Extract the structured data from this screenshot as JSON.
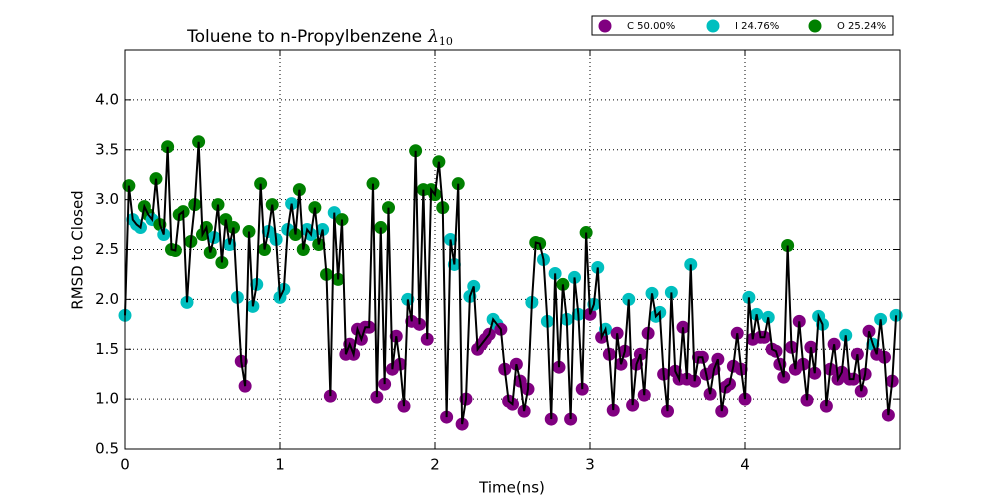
{
  "chart_data": {
    "type": "line",
    "title": "Toluene to n-Propylbenzene",
    "title_symbol": "λ",
    "title_subscript": "10",
    "x_label": "Time(ns)",
    "y_label": "RMSD to Closed",
    "xlim": [
      0,
      5
    ],
    "ylim": [
      0.5,
      4.5
    ],
    "xticks": [
      0,
      1,
      2,
      3,
      4
    ],
    "yticks": [
      0.5,
      {
        "value": 1,
        "label": "1.0"
      },
      1.5,
      {
        "value": 2,
        "label": "2.0"
      },
      2.5,
      {
        "value": 3,
        "label": "3.0"
      },
      3.5,
      {
        "value": 4,
        "label": "4.0"
      }
    ],
    "grid": true,
    "legend": "top-right",
    "line_color": "#000000",
    "series": [
      {
        "name": "C 50.00%",
        "color": "#800080"
      },
      {
        "name": "I 24.76%",
        "color": "#00bfbf"
      },
      {
        "name": "O 25.24%",
        "color": "#008000"
      }
    ],
    "x": [
      0,
      0.025,
      0.05,
      0.075,
      0.1,
      0.125,
      0.15,
      0.175,
      0.2,
      0.225,
      0.25,
      0.275,
      0.3,
      0.325,
      0.35,
      0.375,
      0.4,
      0.425,
      0.45,
      0.475,
      0.5,
      0.525,
      0.55,
      0.575,
      0.6,
      0.625,
      0.65,
      0.675,
      0.7,
      0.725,
      0.75,
      0.775,
      0.8,
      0.825,
      0.85,
      0.875,
      0.9,
      0.925,
      0.95,
      0.975,
      1,
      1.025,
      1.05,
      1.075,
      1.1,
      1.125,
      1.15,
      1.175,
      1.2,
      1.225,
      1.25,
      1.275,
      1.3,
      1.325,
      1.35,
      1.375,
      1.4,
      1.425,
      1.45,
      1.475,
      1.5,
      1.525,
      1.55,
      1.575,
      1.6,
      1.625,
      1.65,
      1.675,
      1.7,
      1.725,
      1.75,
      1.775,
      1.8,
      1.825,
      1.85,
      1.875,
      1.9,
      1.925,
      1.95,
      1.975,
      2,
      2.025,
      2.05,
      2.075,
      2.1,
      2.125,
      2.15,
      2.175,
      2.2,
      2.225,
      2.25,
      2.275,
      2.3,
      2.325,
      2.35,
      2.375,
      2.4,
      2.425,
      2.45,
      2.475,
      2.5,
      2.525,
      2.55,
      2.575,
      2.6,
      2.625,
      2.65,
      2.675,
      2.7,
      2.725,
      2.75,
      2.775,
      2.8,
      2.825,
      2.85,
      2.875,
      2.9,
      2.925,
      2.95,
      2.975,
      3,
      3.025,
      3.05,
      3.075,
      3.1,
      3.125,
      3.15,
      3.175,
      3.2,
      3.225,
      3.25,
      3.275,
      3.3,
      3.325,
      3.35,
      3.375,
      3.4,
      3.425,
      3.45,
      3.475,
      3.5,
      3.525,
      3.55,
      3.575,
      3.6,
      3.625,
      3.65,
      3.675,
      3.7,
      3.725,
      3.75,
      3.775,
      3.8,
      3.825,
      3.85,
      3.875,
      3.9,
      3.925,
      3.95,
      3.975,
      4,
      4.025,
      4.05,
      4.075,
      4.1,
      4.125,
      4.15,
      4.175,
      4.2,
      4.225,
      4.25,
      4.275,
      4.3,
      4.325,
      4.35,
      4.375,
      4.4,
      4.425,
      4.45,
      4.475,
      4.5,
      4.525,
      4.55,
      4.575,
      4.6,
      4.625,
      4.65,
      4.675,
      4.7,
      4.725,
      4.75,
      4.775,
      4.8,
      4.825,
      4.85,
      4.875,
      4.9,
      4.925,
      4.95,
      4.975
    ],
    "values": [
      1.84,
      3.14,
      2.8,
      2.75,
      2.72,
      2.93,
      2.85,
      2.8,
      3.21,
      2.75,
      2.65,
      3.53,
      2.5,
      2.49,
      2.85,
      2.88,
      1.97,
      2.58,
      2.95,
      3.58,
      2.65,
      2.72,
      2.47,
      2.62,
      2.95,
      2.37,
      2.8,
      2.55,
      2.72,
      2.02,
      1.38,
      1.13,
      2.68,
      1.93,
      2.15,
      3.16,
      2.5,
      2.68,
      2.95,
      2.6,
      2.02,
      2.1,
      2.7,
      2.96,
      2.65,
      3.1,
      2.5,
      2.7,
      2.65,
      2.92,
      2.55,
      2.7,
      2.25,
      1.03,
      2.87,
      2.2,
      2.8,
      1.45,
      1.55,
      1.45,
      1.7,
      1.6,
      1.72,
      1.72,
      3.16,
      1.02,
      2.72,
      1.15,
      2.92,
      1.3,
      1.63,
      1.35,
      0.93,
      2.0,
      1.78,
      3.49,
      1.75,
      3.1,
      1.6,
      3.1,
      3.05,
      3.38,
      2.92,
      0.82,
      2.6,
      2.35,
      3.16,
      0.75,
      1.0,
      2.03,
      2.13,
      1.5,
      1.55,
      1.6,
      1.65,
      1.8,
      1.75,
      1.7,
      1.3,
      0.98,
      0.95,
      1.35,
      1.18,
      0.88,
      1.1,
      1.97,
      2.57,
      2.56,
      2.4,
      1.78,
      0.8,
      2.26,
      1.32,
      2.15,
      1.8,
      0.8,
      2.22,
      1.85,
      1.1,
      2.67,
      1.85,
      1.95,
      2.32,
      1.62,
      1.7,
      1.45,
      0.89,
      1.66,
      1.35,
      1.48,
      2.0,
      0.94,
      1.35,
      1.45,
      1.04,
      1.66,
      2.06,
      1.83,
      1.87,
      1.25,
      0.88,
      2.07,
      1.28,
      1.2,
      1.72,
      1.2,
      2.35,
      1.18,
      1.42,
      1.42,
      1.25,
      1.05,
      1.3,
      1.4,
      0.88,
      1.12,
      1.15,
      1.33,
      1.66,
      1.3,
      1.0,
      2.02,
      1.6,
      1.85,
      1.62,
      1.62,
      1.82,
      1.5,
      1.48,
      1.35,
      1.22,
      2.54,
      1.52,
      1.3,
      1.78,
      1.35,
      0.99,
      1.52,
      1.26,
      1.83,
      1.75,
      0.93,
      1.3,
      1.55,
      1.2,
      1.27,
      1.64,
      1.2,
      1.2,
      1.45,
      1.08,
      1.25,
      1.68,
      1.55,
      1.45,
      1.8,
      1.42,
      0.84,
      1.18,
      1.84
    ],
    "states": [
      1,
      2,
      1,
      1,
      1,
      2,
      2,
      1,
      2,
      2,
      1,
      2,
      2,
      2,
      2,
      2,
      1,
      2,
      2,
      2,
      2,
      2,
      2,
      1,
      2,
      2,
      2,
      1,
      2,
      1,
      0,
      0,
      2,
      1,
      1,
      2,
      2,
      1,
      2,
      1,
      1,
      1,
      1,
      1,
      2,
      2,
      2,
      1,
      1,
      2,
      2,
      1,
      2,
      0,
      1,
      2,
      2,
      0,
      0,
      0,
      0,
      0,
      0,
      0,
      2,
      0,
      2,
      0,
      2,
      0,
      0,
      0,
      0,
      1,
      0,
      2,
      0,
      2,
      0,
      2,
      2,
      2,
      2,
      0,
      1,
      1,
      2,
      0,
      0,
      1,
      1,
      0,
      0,
      0,
      0,
      1,
      1,
      0,
      0,
      0,
      0,
      0,
      0,
      0,
      0,
      1,
      2,
      2,
      1,
      1,
      0,
      1,
      0,
      2,
      1,
      0,
      1,
      1,
      0,
      2,
      0,
      1,
      1,
      0,
      1,
      0,
      0,
      0,
      0,
      0,
      1,
      0,
      0,
      0,
      0,
      0,
      1,
      1,
      1,
      0,
      0,
      1,
      0,
      0,
      0,
      0,
      1,
      0,
      0,
      0,
      0,
      0,
      0,
      0,
      0,
      0,
      0,
      0,
      0,
      0,
      0,
      1,
      0,
      1,
      0,
      0,
      1,
      0,
      0,
      0,
      0,
      2,
      0,
      0,
      0,
      0,
      0,
      0,
      0,
      1,
      1,
      0,
      0,
      0,
      0,
      0,
      1,
      0,
      0,
      0,
      0,
      0,
      0,
      1,
      0,
      1,
      0,
      0,
      0,
      1
    ]
  }
}
